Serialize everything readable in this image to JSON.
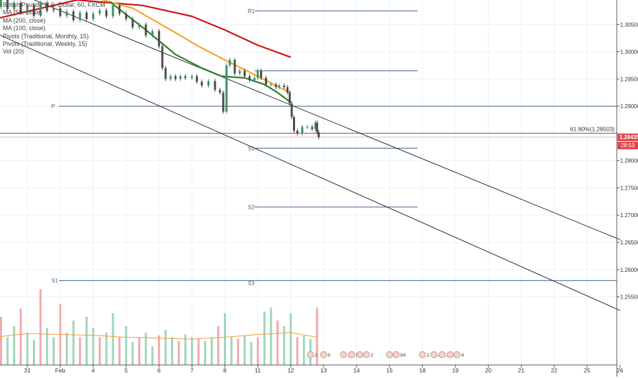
{
  "legend": [
    "British Pound / U.S. Dollar, 60, FXCM",
    "MA (50, close)",
    "MA (200, close)",
    "MA (100, close)",
    "Pivots (Traditional, Monthly, 15)",
    "Pivots (Traditional, Weekly, 15)",
    "Vol (20)"
  ],
  "chart_data": {
    "type": "candlestick",
    "price_axis": {
      "range": [
        1.2425,
        1.3095
      ],
      "ticks": [
        "1.30500",
        "1.30000",
        "1.29500",
        "1.29000",
        "1.28500",
        "1.28000",
        "1.27500",
        "1.27000",
        "1.26500",
        "1.26000",
        "1.25500"
      ],
      "tick_values": [
        1.305,
        1.3,
        1.295,
        1.29,
        1.285,
        1.28,
        1.275,
        1.27,
        1.265,
        1.26,
        1.255
      ]
    },
    "time_axis": {
      "labels": [
        "31",
        "Feb",
        "4",
        "5",
        "6",
        "7",
        "8",
        "11",
        "12",
        "13",
        "14",
        "15",
        "18",
        "19",
        "20",
        "21",
        "22",
        "25",
        "26"
      ],
      "label_days": [
        -1,
        0,
        1,
        2,
        3,
        4,
        5,
        6,
        7,
        8,
        9,
        10,
        11,
        12,
        13,
        14,
        15,
        16,
        17
      ]
    },
    "current_price": {
      "label": "1.28435",
      "value": 1.28435,
      "color": "#e04848"
    },
    "countdown": {
      "label": "28:53"
    },
    "fib_level": {
      "label": "61.80%(1.28503)",
      "value": 1.28503
    },
    "pivots_weekly": [
      {
        "label": "R1",
        "value": 1.3075
      },
      {
        "label": "",
        "value": 1.2965
      },
      {
        "label": "S1",
        "value": 1.2823
      },
      {
        "label": "S2",
        "value": 1.2715
      }
    ],
    "pivot_extra_label": "S3",
    "pivots_monthly": [
      {
        "label": "P",
        "value": 1.29
      },
      {
        "label": "S1",
        "value": 1.258
      }
    ],
    "trend_channel": [
      {
        "from": [
          -2.0,
          1.3125
        ],
        "to": [
          17.0,
          1.2655
        ]
      },
      {
        "from": [
          -2.0,
          1.3035
        ],
        "to": [
          17.0,
          1.2525
        ]
      }
    ],
    "ma_series": [
      {
        "name": "MA (200, close)",
        "color": "#cc1111",
        "points": [
          [
            -2.0,
            1.306
          ],
          [
            0.5,
            1.3095
          ],
          [
            2.5,
            1.3085
          ],
          [
            4.0,
            1.3065
          ],
          [
            5.0,
            1.304
          ],
          [
            6.0,
            1.3012
          ],
          [
            7.0,
            1.299
          ]
        ]
      },
      {
        "name": "MA (100, close)",
        "color": "#f7a42c",
        "points": [
          [
            1.0,
            1.31
          ],
          [
            2.2,
            1.308
          ],
          [
            3.3,
            1.3042
          ],
          [
            4.2,
            1.301
          ],
          [
            5.0,
            1.2985
          ],
          [
            6.0,
            1.2955
          ],
          [
            7.0,
            1.2924
          ]
        ]
      },
      {
        "name": "MA (50, close)",
        "color": "#2d7a2d",
        "points": [
          [
            1.5,
            1.3092
          ],
          [
            2.6,
            1.304
          ],
          [
            3.5,
            1.2995
          ],
          [
            4.3,
            1.297
          ],
          [
            4.9,
            1.2955
          ],
          [
            5.6,
            1.2952
          ],
          [
            6.2,
            1.294
          ],
          [
            6.6,
            1.2925
          ],
          [
            7.0,
            1.2907
          ]
        ]
      }
    ],
    "price_series": [
      [
        -2.0,
        1.309
      ],
      [
        -1.9,
        1.3082
      ],
      [
        -1.8,
        1.3095
      ],
      [
        -1.6,
        1.3078
      ],
      [
        -1.4,
        1.309
      ],
      [
        -1.2,
        1.3072
      ],
      [
        -1.0,
        1.3085
      ],
      [
        -0.8,
        1.3066
      ],
      [
        -0.6,
        1.309
      ],
      [
        -0.4,
        1.3075
      ],
      [
        -0.2,
        1.308
      ],
      [
        0.0,
        1.3066
      ],
      [
        0.2,
        1.3074
      ],
      [
        0.4,
        1.3058
      ],
      [
        0.6,
        1.3072
      ],
      [
        0.8,
        1.306
      ],
      [
        1.0,
        1.307
      ],
      [
        1.2,
        1.3076
      ],
      [
        1.4,
        1.3065
      ],
      [
        1.6,
        1.3085
      ],
      [
        1.8,
        1.307
      ],
      [
        2.0,
        1.306
      ],
      [
        2.2,
        1.3045
      ],
      [
        2.4,
        1.305
      ],
      [
        2.6,
        1.303
      ],
      [
        2.8,
        1.3038
      ],
      [
        3.0,
        1.301
      ],
      [
        3.1,
        1.297
      ],
      [
        3.2,
        1.295
      ],
      [
        3.35,
        1.2955
      ],
      [
        3.5,
        1.295
      ],
      [
        3.65,
        1.2955
      ],
      [
        3.8,
        1.2952
      ],
      [
        4.0,
        1.2955
      ],
      [
        4.15,
        1.2945
      ],
      [
        4.3,
        1.2938
      ],
      [
        4.5,
        1.2946
      ],
      [
        4.7,
        1.293
      ],
      [
        4.85,
        1.2925
      ],
      [
        4.95,
        1.289
      ],
      [
        5.05,
        1.2975
      ],
      [
        5.15,
        1.2985
      ],
      [
        5.3,
        1.296
      ],
      [
        5.45,
        1.2965
      ],
      [
        5.6,
        1.2955
      ],
      [
        5.75,
        1.2948
      ],
      [
        5.9,
        1.2952
      ],
      [
        6.0,
        1.2965
      ],
      [
        6.1,
        1.2952
      ],
      [
        6.25,
        1.294
      ],
      [
        6.4,
        1.294
      ],
      [
        6.55,
        1.2935
      ],
      [
        6.65,
        1.2938
      ],
      [
        6.8,
        1.2935
      ],
      [
        6.9,
        1.2925
      ],
      [
        6.97,
        1.2905
      ],
      [
        7.03,
        1.288
      ],
      [
        7.1,
        1.2855
      ],
      [
        7.2,
        1.285
      ],
      [
        7.35,
        1.2862
      ],
      [
        7.5,
        1.2862
      ],
      [
        7.65,
        1.2858
      ],
      [
        7.75,
        1.287
      ],
      [
        7.8,
        1.2852
      ],
      [
        7.85,
        1.2843
      ]
    ],
    "volume_axis_max": 1000,
    "volume_series": [
      [
        -2.0,
        380
      ],
      [
        -1.8,
        520
      ],
      [
        -1.6,
        300
      ],
      [
        -1.4,
        420
      ],
      [
        -1.2,
        610
      ],
      [
        -1.0,
        350
      ],
      [
        -0.8,
        270
      ],
      [
        -0.6,
        820
      ],
      [
        -0.4,
        400
      ],
      [
        -0.2,
        300
      ],
      [
        0.0,
        660
      ],
      [
        0.2,
        350
      ],
      [
        0.4,
        480
      ],
      [
        0.6,
        300
      ],
      [
        0.8,
        520
      ],
      [
        1.0,
        400
      ],
      [
        1.2,
        300
      ],
      [
        1.4,
        350
      ],
      [
        1.6,
        560
      ],
      [
        1.8,
        300
      ],
      [
        2.0,
        420
      ],
      [
        2.2,
        250
      ],
      [
        2.4,
        300
      ],
      [
        2.6,
        350
      ],
      [
        2.8,
        200
      ],
      [
        3.0,
        320
      ],
      [
        3.2,
        380
      ],
      [
        3.4,
        300
      ],
      [
        3.6,
        260
      ],
      [
        3.8,
        330
      ],
      [
        4.0,
        300
      ],
      [
        4.2,
        280
      ],
      [
        4.4,
        260
      ],
      [
        4.6,
        300
      ],
      [
        4.8,
        420
      ],
      [
        5.0,
        560
      ],
      [
        5.2,
        300
      ],
      [
        5.4,
        280
      ],
      [
        5.6,
        320
      ],
      [
        5.8,
        250
      ],
      [
        6.0,
        300
      ],
      [
        6.2,
        580
      ],
      [
        6.4,
        620
      ],
      [
        6.6,
        480
      ],
      [
        6.8,
        420
      ],
      [
        7.0,
        560
      ],
      [
        7.2,
        300
      ],
      [
        7.4,
        320
      ],
      [
        7.6,
        280
      ],
      [
        7.8,
        620
      ]
    ],
    "volume_ma": [
      [
        -2.0,
        300
      ],
      [
        -1.0,
        340
      ],
      [
        0.0,
        330
      ],
      [
        1.0,
        320
      ],
      [
        2.0,
        300
      ],
      [
        3.0,
        290
      ],
      [
        4.0,
        280
      ],
      [
        5.0,
        300
      ],
      [
        6.0,
        330
      ],
      [
        7.0,
        350
      ],
      [
        7.8,
        300
      ]
    ],
    "events": [
      {
        "x": 7.6,
        "label": "2"
      },
      {
        "x": 8.0,
        "label": "6"
      },
      {
        "x": 8.6,
        "label": "16"
      },
      {
        "x": 8.85,
        "label": "5"
      },
      {
        "x": 9.1,
        "label": "2"
      },
      {
        "x": 9.3,
        "label": "2"
      },
      {
        "x": 10.0,
        "label": "2"
      },
      {
        "x": 10.2,
        "label": "84"
      },
      {
        "x": 11.0,
        "label": "2"
      },
      {
        "x": 11.35,
        "label": "4"
      },
      {
        "x": 11.6,
        "label": "3"
      },
      {
        "x": 11.85,
        "label": "2"
      },
      {
        "x": 12.05,
        "label": "4"
      }
    ]
  }
}
